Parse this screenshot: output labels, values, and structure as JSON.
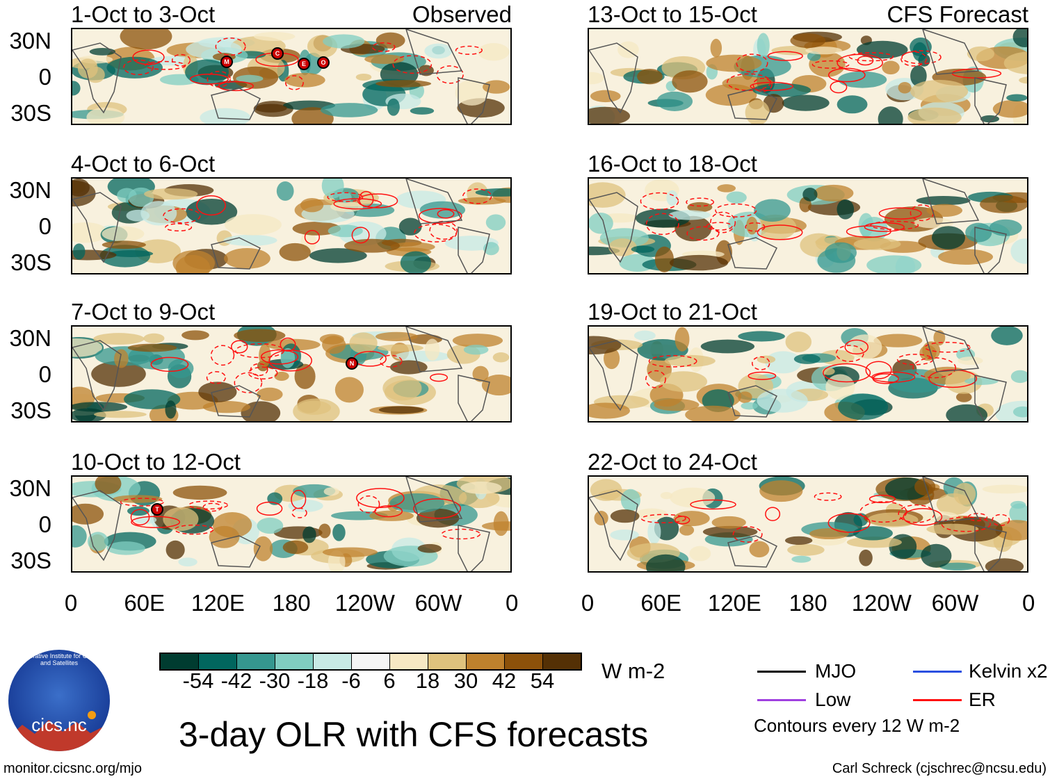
{
  "panels": [
    {
      "title": "1-Oct to 3-Oct",
      "tag": "Observed",
      "storms": [
        "M",
        "C",
        "E",
        "O"
      ]
    },
    {
      "title": "4-Oct to 6-Oct",
      "tag": "",
      "storms": []
    },
    {
      "title": "7-Oct to 9-Oct",
      "tag": "",
      "storms": [
        "N"
      ]
    },
    {
      "title": "10-Oct to 12-Oct",
      "tag": "",
      "storms": [
        "T"
      ]
    },
    {
      "title": "13-Oct to 15-Oct",
      "tag": "CFS Forecast",
      "storms": []
    },
    {
      "title": "16-Oct to 18-Oct",
      "tag": "",
      "storms": []
    },
    {
      "title": "19-Oct to 21-Oct",
      "tag": "",
      "storms": []
    },
    {
      "title": "22-Oct to 24-Oct",
      "tag": "",
      "storms": []
    }
  ],
  "lat_labels": [
    "30N",
    "0",
    "30S"
  ],
  "lon_labels": [
    "0",
    "60E",
    "120E",
    "180",
    "120W",
    "60W",
    "0"
  ],
  "colorbar": {
    "colors": [
      "#003c30",
      "#01665e",
      "#35978f",
      "#80cdc1",
      "#c7eae5",
      "#f5f5f5",
      "#f6e8c3",
      "#dfc27d",
      "#bf812d",
      "#8c510a",
      "#543005"
    ],
    "labels": [
      "-54",
      "-42",
      "-30",
      "-18",
      "-6",
      "6",
      "18",
      "30",
      "42",
      "54"
    ],
    "units": "W m-2"
  },
  "title": "3-day OLR with CFS forecasts",
  "legend": {
    "items": [
      {
        "label": "MJO",
        "color": "#000000"
      },
      {
        "label": "Kelvin x2",
        "color": "#2a4fe0"
      },
      {
        "label": "Low",
        "color": "#a040e0"
      },
      {
        "label": "ER",
        "color": "#ff1010"
      }
    ],
    "note": "Contours every 12 W m-2"
  },
  "logo": {
    "name": "cics.nc",
    "arc_text": "Cooperative Institute for Climate and Satellites"
  },
  "footer": {
    "left": "monitor.cicsnc.org/mjo",
    "right": "Carl Schreck (cjschrec@ncsu.edu)"
  },
  "chart_data": {
    "type": "heatmap",
    "title": "3-day OLR with CFS forecasts",
    "variable": "OLR anomaly",
    "units": "W m-2",
    "xlabel": "",
    "ylabel": "",
    "x_ticks": [
      "0",
      "60E",
      "120E",
      "180",
      "120W",
      "60W",
      "0"
    ],
    "y_ticks": [
      "30N",
      "0",
      "30S"
    ],
    "color_levels": [
      -54,
      -42,
      -30,
      -18,
      -6,
      6,
      18,
      30,
      42,
      54
    ],
    "contour_interval": 12,
    "panels": [
      "1-Oct to 3-Oct",
      "4-Oct to 6-Oct",
      "7-Oct to 9-Oct",
      "10-Oct to 12-Oct",
      "13-Oct to 15-Oct",
      "16-Oct to 18-Oct",
      "19-Oct to 21-Oct",
      "22-Oct to 24-Oct"
    ],
    "panel_groups": {
      "Observed": 4,
      "CFS Forecast": 4
    }
  }
}
